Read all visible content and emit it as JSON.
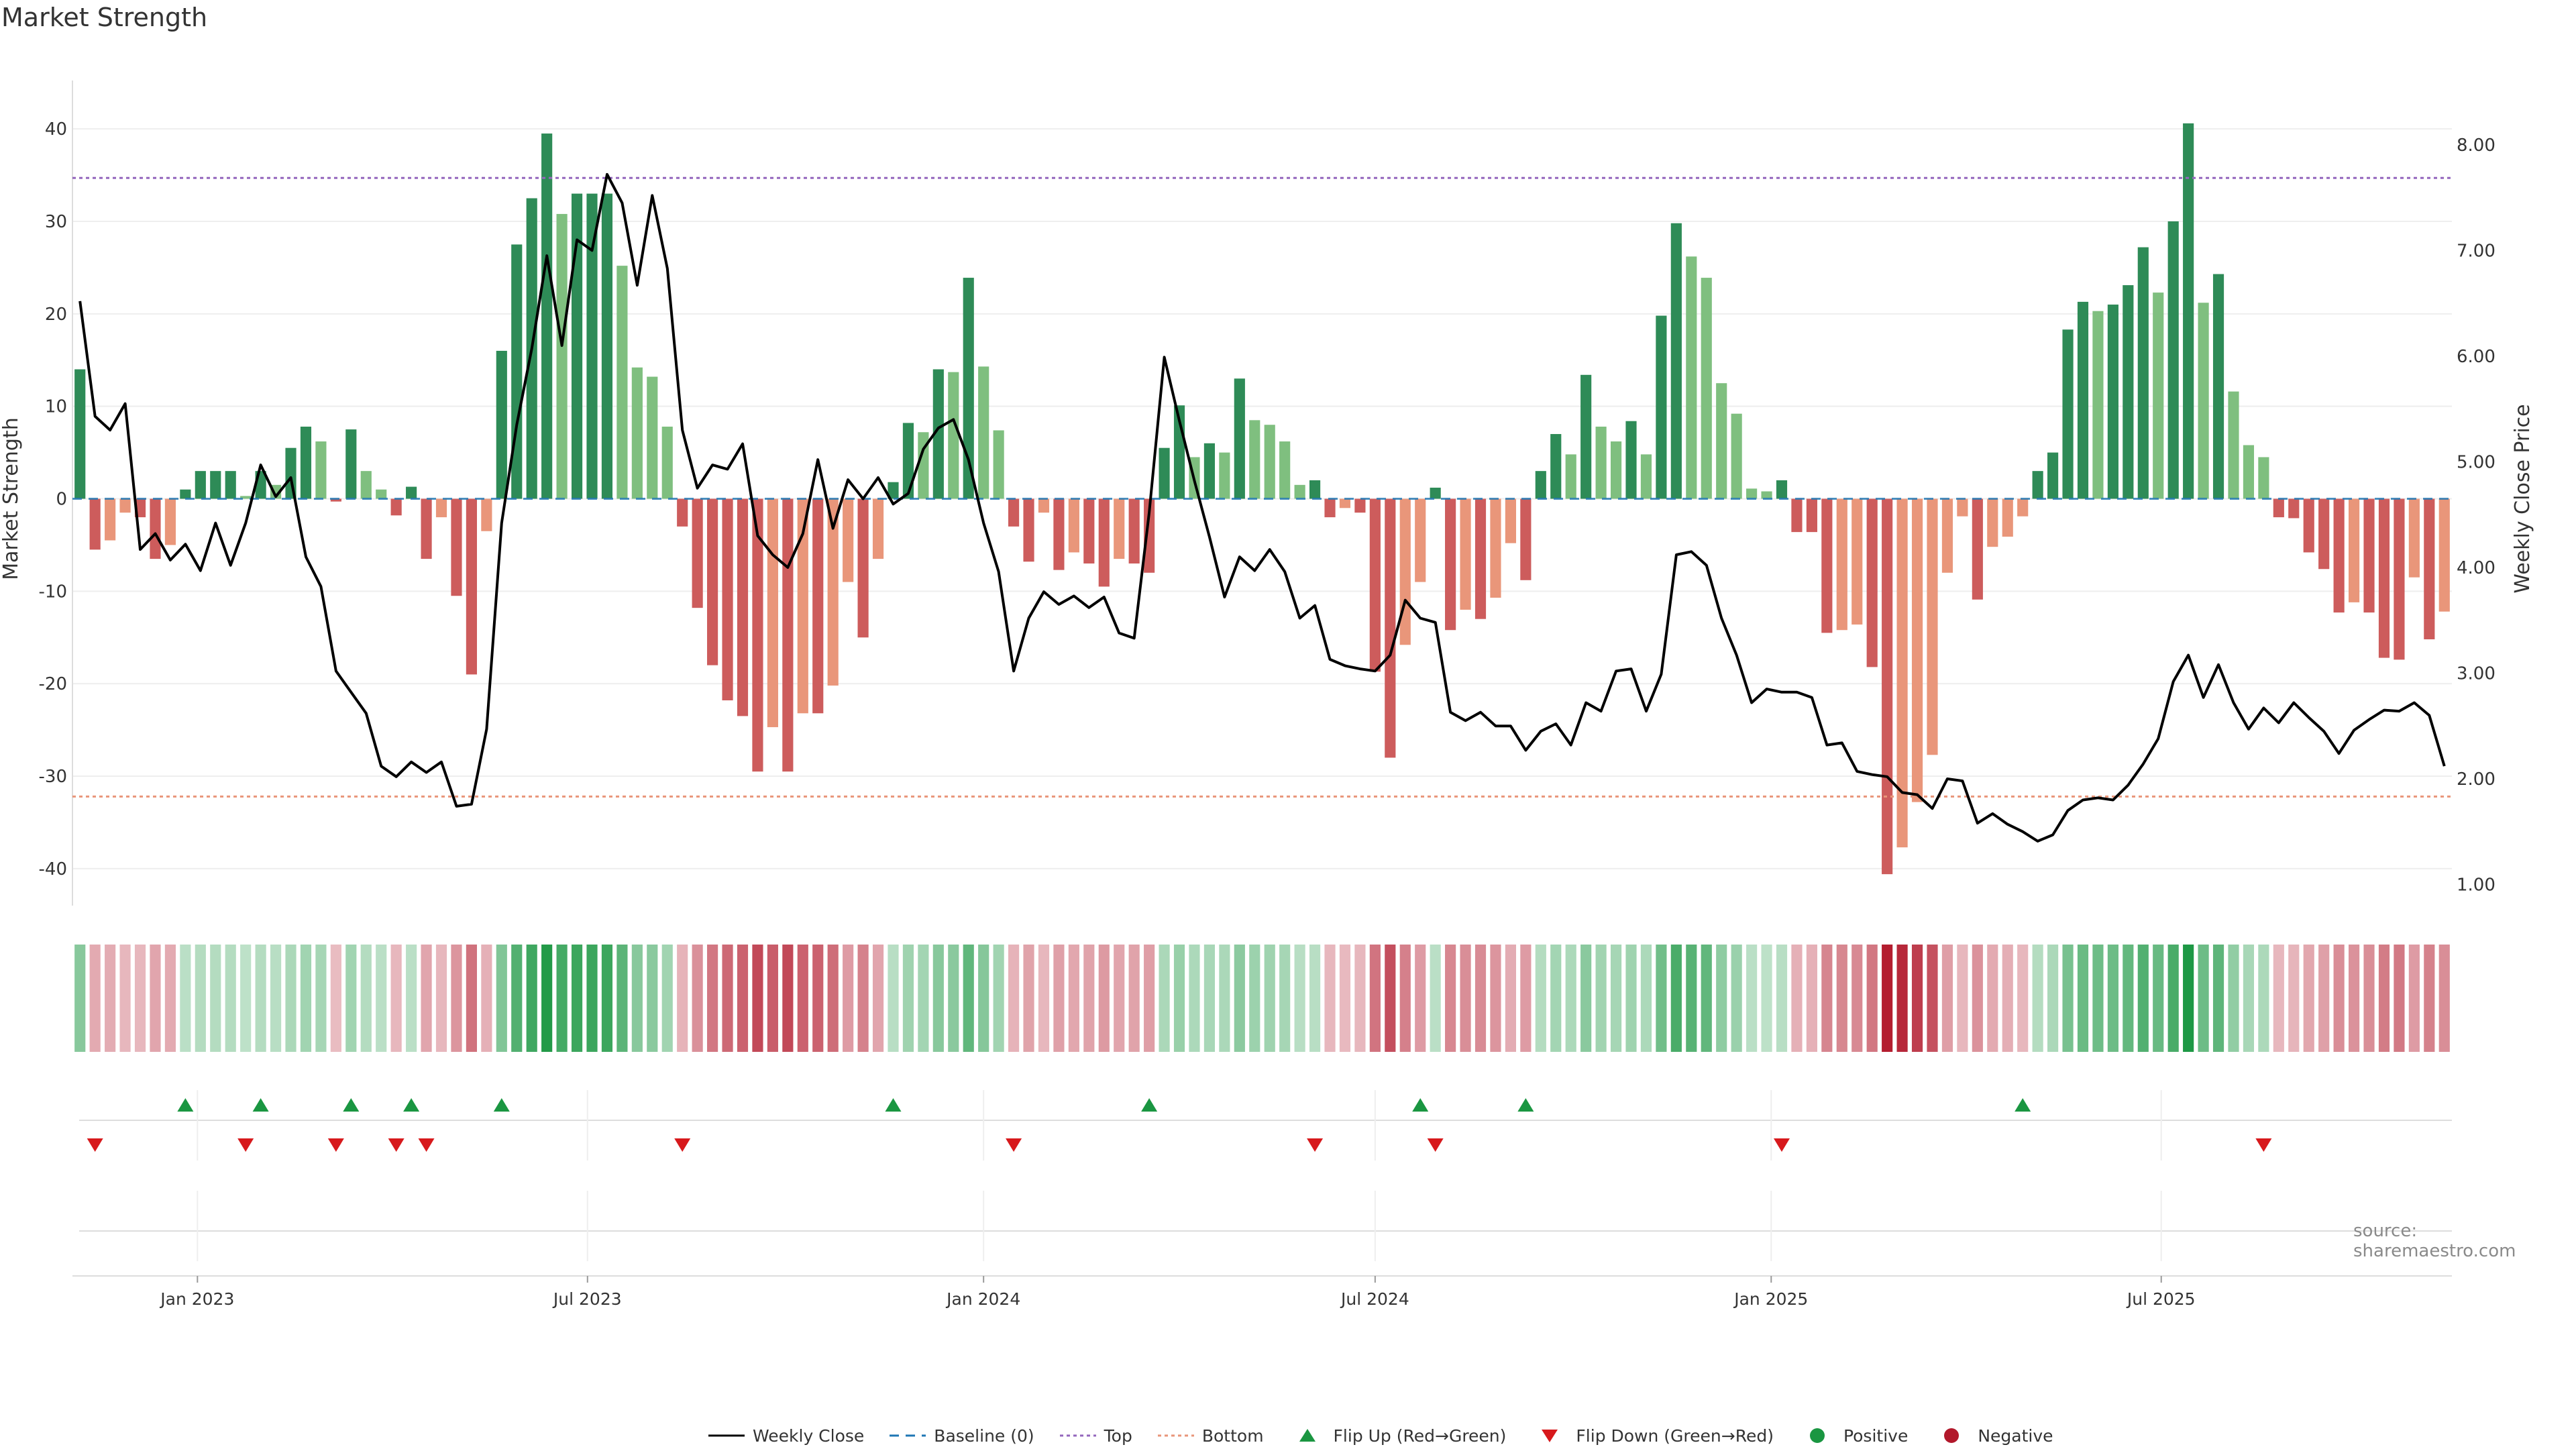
{
  "chart_data": {
    "type": "bar",
    "title": "Market Strength",
    "ylabel": "Market Strength",
    "y2label": "Weekly Close Price",
    "source": "source: sharemaestro.com",
    "ylim": [
      -44,
      44
    ],
    "y2lim": [
      0.8,
      8.5
    ],
    "yticks": [
      "40",
      "30",
      "20",
      "10",
      "0",
      "-10",
      "-20",
      "-30",
      "-40"
    ],
    "y2ticks": [
      "8.00",
      "7.00",
      "6.00",
      "5.00",
      "4.00",
      "3.00",
      "2.00",
      "1.00"
    ],
    "top_level": 34.7,
    "bottom_level": -32.2,
    "x_labels": [
      {
        "label": "Jan 2023",
        "week": 8.3
      },
      {
        "label": "Jul 2023",
        "week": 34.2
      },
      {
        "label": "Jan 2024",
        "week": 60.5
      },
      {
        "label": "Jul 2024",
        "week": 86.5
      },
      {
        "label": "Jan 2025",
        "week": 112.8
      },
      {
        "label": "Jul 2025",
        "week": 138.7
      }
    ],
    "strength": [
      14,
      -5.5,
      -4.5,
      -1.5,
      -2,
      -6.5,
      -5,
      1,
      3,
      3,
      3,
      0.3,
      3,
      1.5,
      5.5,
      7.8,
      6.2,
      -0.3,
      7.5,
      3,
      1,
      -1.8,
      1.3,
      -6.5,
      -2,
      -10.5,
      -19,
      -3.5,
      16,
      27.5,
      32.5,
      39.5,
      30.8,
      33,
      33,
      33,
      25.2,
      14.2,
      13.2,
      7.8,
      -3,
      -11.8,
      -18,
      -21.8,
      -23.5,
      -29.5,
      -24.7,
      -29.5,
      -23.2,
      -23.2,
      -20.2,
      -9,
      -15,
      -6.5,
      1.8,
      8.2,
      7.2,
      14,
      13.7,
      23.9,
      14.3,
      7.4,
      -3,
      -6.8,
      -1.5,
      -7.7,
      -5.8,
      -7,
      -9.5,
      -6.5,
      -7,
      -8,
      5.5,
      10.1,
      4.5,
      6,
      5,
      13,
      8.5,
      8,
      6.2,
      1.5,
      2,
      -2,
      -1,
      -1.5,
      -18.7,
      -28,
      -15.8,
      -9,
      1.2,
      -14.2,
      -12,
      -13,
      -10.7,
      -4.8,
      -8.8,
      3,
      7,
      4.8,
      13.4,
      7.8,
      6.2,
      8.4,
      4.8,
      19.8,
      29.8,
      26.2,
      23.9,
      12.5,
      9.2,
      1.1,
      0.8,
      2,
      -3.6,
      -3.6,
      -14.5,
      -14.2,
      -13.6,
      -18.2,
      -40.6,
      -37.7,
      -32.8,
      -27.7,
      -8,
      -1.9,
      -10.9,
      -5.2,
      -4.1,
      -1.9,
      3,
      5,
      18.3,
      21.3,
      20.3,
      21,
      23.1,
      27.2,
      22.3,
      30,
      40.6,
      21.2,
      24.3,
      11.6,
      5.8,
      4.5,
      -2,
      -2.1,
      -5.8,
      -7.6,
      -12.3,
      -11.2,
      -12.3,
      -17.2,
      -17.4,
      -8.5,
      -15.2,
      -12.2
    ],
    "weekly_close": [
      6.52,
      5.43,
      5.3,
      5.55,
      4.17,
      4.32,
      4.07,
      4.22,
      3.97,
      4.42,
      4.02,
      4.42,
      4.97,
      4.67,
      4.85,
      4.1,
      3.82,
      3.02,
      2.82,
      2.62,
      2.12,
      2.02,
      2.16,
      2.06,
      2.16,
      1.74,
      1.76,
      2.47,
      4.42,
      5.35,
      6.07,
      6.95,
      6.1,
      7.1,
      7.0,
      7.72,
      7.45,
      6.67,
      7.52,
      6.83,
      5.3,
      4.75,
      4.97,
      4.93,
      5.17,
      4.3,
      4.12,
      4.0,
      4.32,
      5.02,
      4.37,
      4.83,
      4.65,
      4.85,
      4.6,
      4.7,
      5.12,
      5.32,
      5.4,
      5.02,
      4.42,
      3.96,
      3.02,
      3.52,
      3.77,
      3.65,
      3.73,
      3.62,
      3.72,
      3.38,
      3.33,
      4.52,
      5.99,
      5.39,
      4.82,
      4.29,
      3.72,
      4.1,
      3.97,
      4.17,
      3.96,
      3.52,
      3.64,
      3.13,
      3.07,
      3.04,
      3.02,
      3.17,
      3.69,
      3.52,
      3.48,
      2.63,
      2.55,
      2.63,
      2.5,
      2.5,
      2.27,
      2.45,
      2.52,
      2.32,
      2.72,
      2.64,
      3.02,
      3.04,
      2.64,
      2.99,
      4.12,
      4.15,
      4.02,
      3.52,
      3.17,
      2.72,
      2.85,
      2.82,
      2.82,
      2.77,
      2.32,
      2.34,
      2.07,
      2.04,
      2.02,
      1.87,
      1.85,
      1.72,
      2.0,
      1.98,
      1.58,
      1.67,
      1.57,
      1.5,
      1.41,
      1.47,
      1.7,
      1.8,
      1.82,
      1.8,
      1.94,
      2.14,
      2.38,
      2.92,
      3.17,
      2.77,
      3.08,
      2.72,
      2.47,
      2.67,
      2.53,
      2.72,
      2.58,
      2.45,
      2.24,
      2.46,
      2.56,
      2.65,
      2.64,
      2.72,
      2.6,
      2.12
    ],
    "flip_up_weeks": [
      7,
      12,
      18,
      22,
      28,
      54,
      71,
      89,
      96,
      129
    ],
    "flip_down_weeks": [
      1,
      11,
      17,
      21,
      23,
      40,
      62,
      82,
      90,
      113,
      145
    ],
    "colors": {
      "strong_positive": "#2e8b57",
      "weak_positive": "#7fbf7f",
      "strong_negative": "#cd5c5c",
      "weak_negative": "#e9967a",
      "weekly_close": "#000000",
      "baseline": "#1f77b4",
      "top": "#9467bd",
      "bottom": "#e9967a",
      "flip_up": "#1a9641",
      "flip_down": "#d7191c",
      "positive": "#1a9641",
      "negative": "#b2182b"
    },
    "legend": [
      {
        "label": "Weekly Close",
        "symbol": "line"
      },
      {
        "label": "Baseline (0)",
        "symbol": "dash"
      },
      {
        "label": "Top",
        "symbol": "dot"
      },
      {
        "label": "Bottom",
        "symbol": "dot-bottom"
      },
      {
        "label": "Flip Up (Red→Green)",
        "symbol": "tri-up"
      },
      {
        "label": "Flip Down (Green→Red)",
        "symbol": "tri-down"
      },
      {
        "label": "Positive",
        "symbol": "circle-pos"
      },
      {
        "label": "Negative",
        "symbol": "circle-neg"
      }
    ],
    "legend_position": "bottom-center"
  }
}
